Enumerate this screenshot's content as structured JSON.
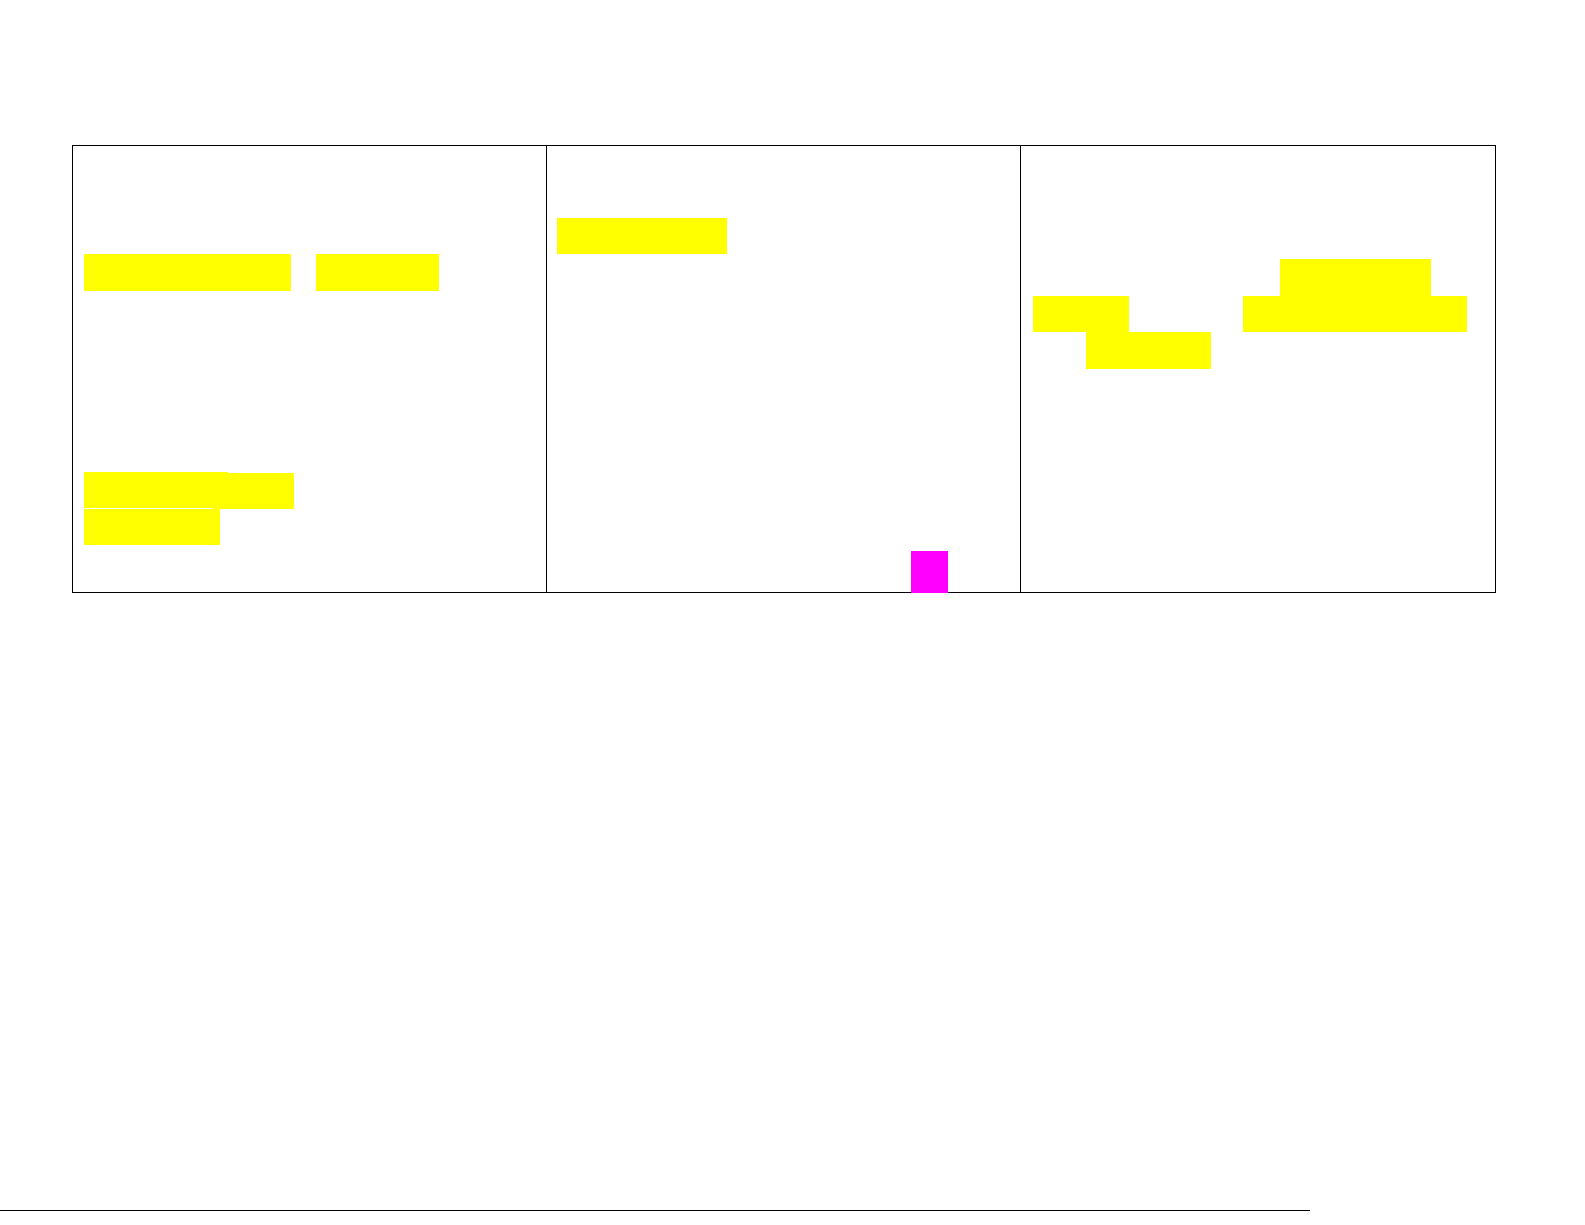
{
  "colors": {
    "highlight": "#ffff00",
    "marker": "#ff00ff",
    "border": "#000000"
  },
  "table": {
    "columns": 3,
    "redactions": [
      {
        "column": 1,
        "color": "highlight"
      },
      {
        "column": 1,
        "color": "highlight"
      },
      {
        "column": 1,
        "color": "highlight"
      },
      {
        "column": 1,
        "color": "highlight"
      },
      {
        "column": 1,
        "color": "highlight"
      },
      {
        "column": 2,
        "color": "highlight"
      },
      {
        "column": 2,
        "color": "marker"
      },
      {
        "column": 3,
        "color": "highlight"
      },
      {
        "column": 3,
        "color": "highlight"
      },
      {
        "column": 3,
        "color": "highlight"
      },
      {
        "column": 3,
        "color": "highlight"
      }
    ]
  }
}
